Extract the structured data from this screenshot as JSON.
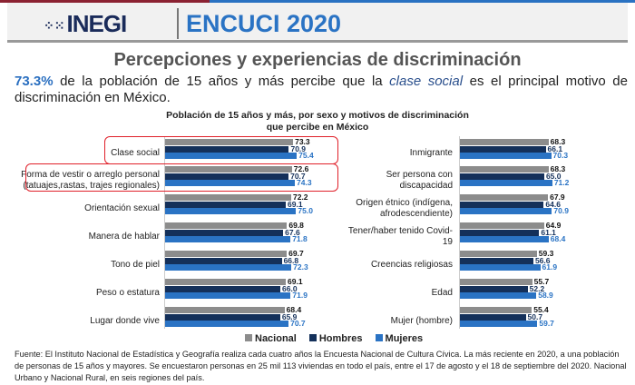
{
  "header": {
    "logo": "INEGI",
    "survey": "ENCUCI 2020"
  },
  "title": "Percepciones y experiencias de discriminación",
  "lead": {
    "pct": "73.3%",
    "before": " de la población de 15 años y más percibe que la ",
    "emph": "clase social",
    "after": " es el principal motivo de discriminación en México."
  },
  "colors": {
    "Nacional": "#8c8c8c",
    "Hombres": "#14305a",
    "Mujeres": "#2a73c4"
  },
  "chart_data": {
    "type": "bar",
    "title": "Población de 15 años y más, por sexo y motivos de discriminación que percibe en México",
    "orientation": "horizontal",
    "legend": [
      "Nacional",
      "Hombres",
      "Mujeres"
    ],
    "legend_position": "bottom",
    "panels": [
      {
        "categories": [
          "Clase social",
          "Forma de vestir o arreglo personal (tatuajes,rastas, trajes regionales)",
          "Orientación sexual",
          "Manera de hablar",
          "Tono de piel",
          "Peso o estatura",
          "Lugar donde vive"
        ],
        "highlighted": [
          0,
          1
        ],
        "series": [
          {
            "name": "Nacional",
            "values": [
              73.3,
              72.6,
              72.2,
              69.8,
              69.7,
              69.1,
              68.4
            ]
          },
          {
            "name": "Hombres",
            "values": [
              70.9,
              70.7,
              69.1,
              67.6,
              66.8,
              66.0,
              65.9
            ]
          },
          {
            "name": "Mujeres",
            "values": [
              75.4,
              74.3,
              75.0,
              71.8,
              72.3,
              71.9,
              70.7
            ]
          }
        ]
      },
      {
        "categories": [
          "Inmigrante",
          "Ser persona con discapacidad",
          "Origen étnico (indígena, afrodescendiente)",
          "Tener/haber tenido Covid-19",
          "Creencias religiosas",
          "Edad",
          "Mujer (hombre)"
        ],
        "highlighted": [],
        "series": [
          {
            "name": "Nacional",
            "values": [
              68.3,
              68.3,
              67.9,
              64.9,
              59.3,
              55.7,
              55.4
            ]
          },
          {
            "name": "Hombres",
            "values": [
              66.1,
              65.0,
              64.6,
              61.1,
              56.6,
              52.2,
              50.7
            ]
          },
          {
            "name": "Mujeres",
            "values": [
              70.3,
              71.2,
              70.9,
              68.4,
              61.9,
              58.9,
              59.7
            ]
          }
        ]
      }
    ]
  },
  "footnote": "Fuente: El Instituto Nacional de Estadística y Geografía realiza cada cuatro años la Encuesta Nacional de Cultura Cívica. La más reciente en 2020, a una población de personas de 15 años y mayores. Se encuestaron personas en 25 mil 113 viviendas en todo el país, entre el 17 de agosto y el 18 de septiembre del 2020. Nacional Urbano y Nacional Rural, en seis regiones del país."
}
